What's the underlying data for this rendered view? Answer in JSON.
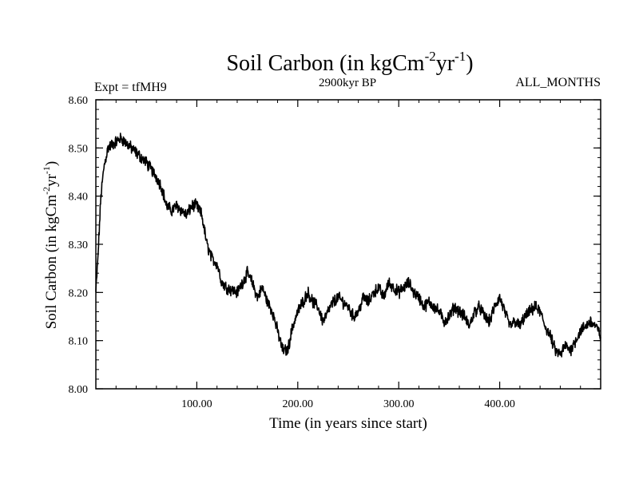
{
  "chart_data": {
    "type": "line",
    "title_main": "Soil Carbon (in kgCm",
    "title_sup1": "-2",
    "title_mid": "yr",
    "title_sup2": "-1",
    "title_end": ")",
    "expt_label": "Expt = tfMH9",
    "subtitle": "2900kyr BP",
    "months_label": "ALL_MONTHS",
    "xlabel": "Time (in years since start)",
    "ylabel_main": "Soil Carbon (in kgCm",
    "ylabel_sup1": "-2",
    "ylabel_mid": "yr",
    "ylabel_sup2": "-1",
    "ylabel_end": ")",
    "xlim": [
      0,
      500
    ],
    "ylim": [
      8.0,
      8.6
    ],
    "x_ticks": [
      100,
      200,
      300,
      400
    ],
    "x_tick_labels": [
      "100.00",
      "200.00",
      "300.00",
      "400.00"
    ],
    "y_ticks": [
      8.0,
      8.1,
      8.2,
      8.3,
      8.4,
      8.5,
      8.6
    ],
    "y_tick_labels": [
      "8.00",
      "8.10",
      "8.20",
      "8.30",
      "8.40",
      "8.50",
      "8.60"
    ],
    "line_color": "#000000",
    "noise_amplitude": 0.01,
    "series": [
      {
        "name": "Soil Carbon",
        "x": [
          0,
          2,
          5,
          8,
          12,
          18,
          25,
          30,
          35,
          40,
          50,
          60,
          65,
          70,
          75,
          80,
          85,
          90,
          95,
          100,
          105,
          110,
          115,
          120,
          125,
          130,
          140,
          145,
          150,
          155,
          160,
          165,
          170,
          175,
          180,
          185,
          190,
          195,
          200,
          205,
          210,
          215,
          220,
          225,
          230,
          235,
          240,
          245,
          250,
          255,
          260,
          265,
          270,
          275,
          280,
          285,
          290,
          295,
          300,
          305,
          310,
          315,
          320,
          325,
          330,
          335,
          340,
          345,
          350,
          355,
          360,
          365,
          370,
          375,
          380,
          385,
          390,
          395,
          400,
          405,
          410,
          415,
          420,
          425,
          430,
          435,
          440,
          445,
          450,
          455,
          460,
          465,
          470,
          475,
          480,
          485,
          490,
          495,
          500
        ],
        "values": [
          8.2,
          8.27,
          8.4,
          8.46,
          8.5,
          8.51,
          8.52,
          8.51,
          8.5,
          8.49,
          8.47,
          8.44,
          8.42,
          8.38,
          8.37,
          8.38,
          8.37,
          8.36,
          8.38,
          8.38,
          8.36,
          8.3,
          8.27,
          8.26,
          8.22,
          8.21,
          8.2,
          8.22,
          8.24,
          8.22,
          8.19,
          8.21,
          8.18,
          8.16,
          8.12,
          8.08,
          8.08,
          8.13,
          8.16,
          8.18,
          8.2,
          8.18,
          8.17,
          8.14,
          8.16,
          8.18,
          8.19,
          8.18,
          8.17,
          8.15,
          8.16,
          8.19,
          8.18,
          8.2,
          8.21,
          8.19,
          8.22,
          8.21,
          8.2,
          8.21,
          8.22,
          8.2,
          8.19,
          8.17,
          8.18,
          8.17,
          8.16,
          8.14,
          8.15,
          8.17,
          8.16,
          8.15,
          8.13,
          8.16,
          8.17,
          8.15,
          8.14,
          8.17,
          8.19,
          8.16,
          8.13,
          8.14,
          8.13,
          8.15,
          8.16,
          8.17,
          8.16,
          8.13,
          8.11,
          8.08,
          8.07,
          8.09,
          8.08,
          8.1,
          8.12,
          8.13,
          8.14,
          8.13,
          8.11
        ]
      }
    ]
  }
}
